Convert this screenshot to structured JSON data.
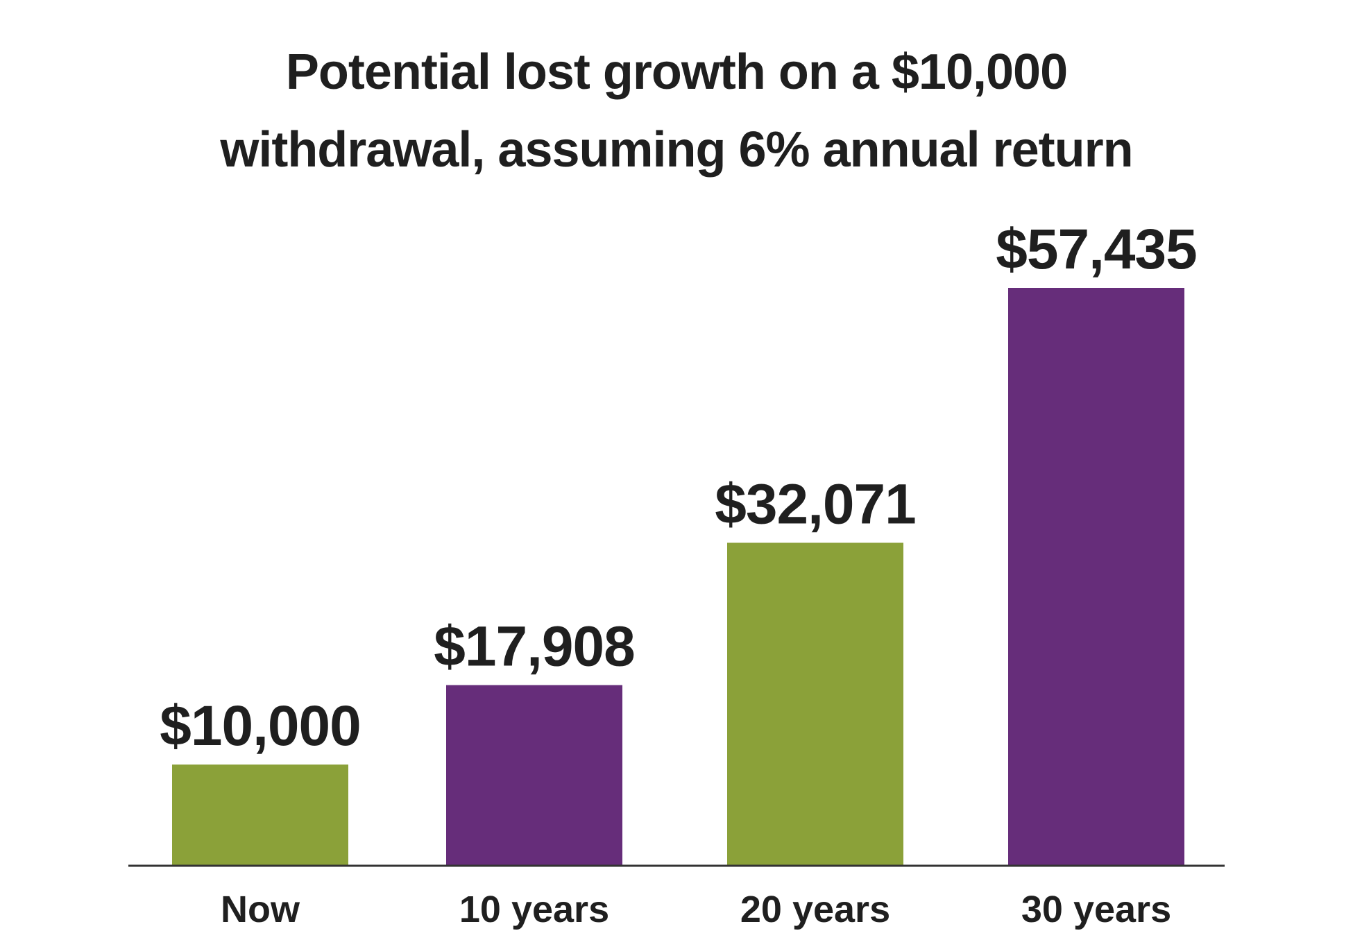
{
  "chart_data": {
    "type": "bar",
    "title_lines": [
      "Potential lost growth on a $10,000",
      "withdrawal, assuming 6% annual return"
    ],
    "categories": [
      "Now",
      "10 years",
      "20 years",
      "30 years"
    ],
    "values": [
      10000,
      17908,
      32071,
      57435
    ],
    "value_labels": [
      "$10,000",
      "$17,908",
      "$32,071",
      "$57,435"
    ],
    "bar_colors": [
      "#8ba139",
      "#662d7a",
      "#8ba139",
      "#662d7a"
    ],
    "axis_color": "#333333",
    "ylim": [
      0,
      57435
    ],
    "grid": false,
    "legend": "none"
  }
}
